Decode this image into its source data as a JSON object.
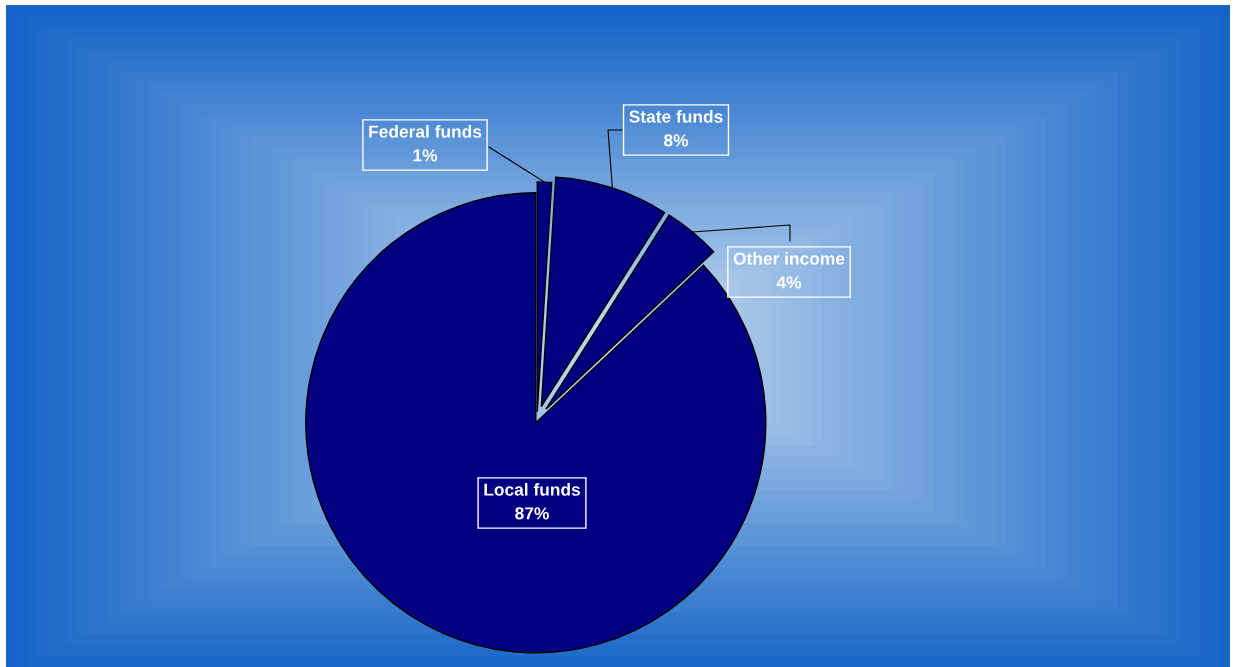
{
  "chart_data": {
    "type": "pie",
    "categories": [
      "Federal funds",
      "State funds",
      "Other income",
      "Local funds"
    ],
    "values": [
      1,
      8,
      4,
      87
    ],
    "colors": [
      "#000080",
      "#000080",
      "#000080",
      "#000080"
    ],
    "value_labels": [
      "1%",
      "8%",
      "4%",
      "87%"
    ]
  }
}
